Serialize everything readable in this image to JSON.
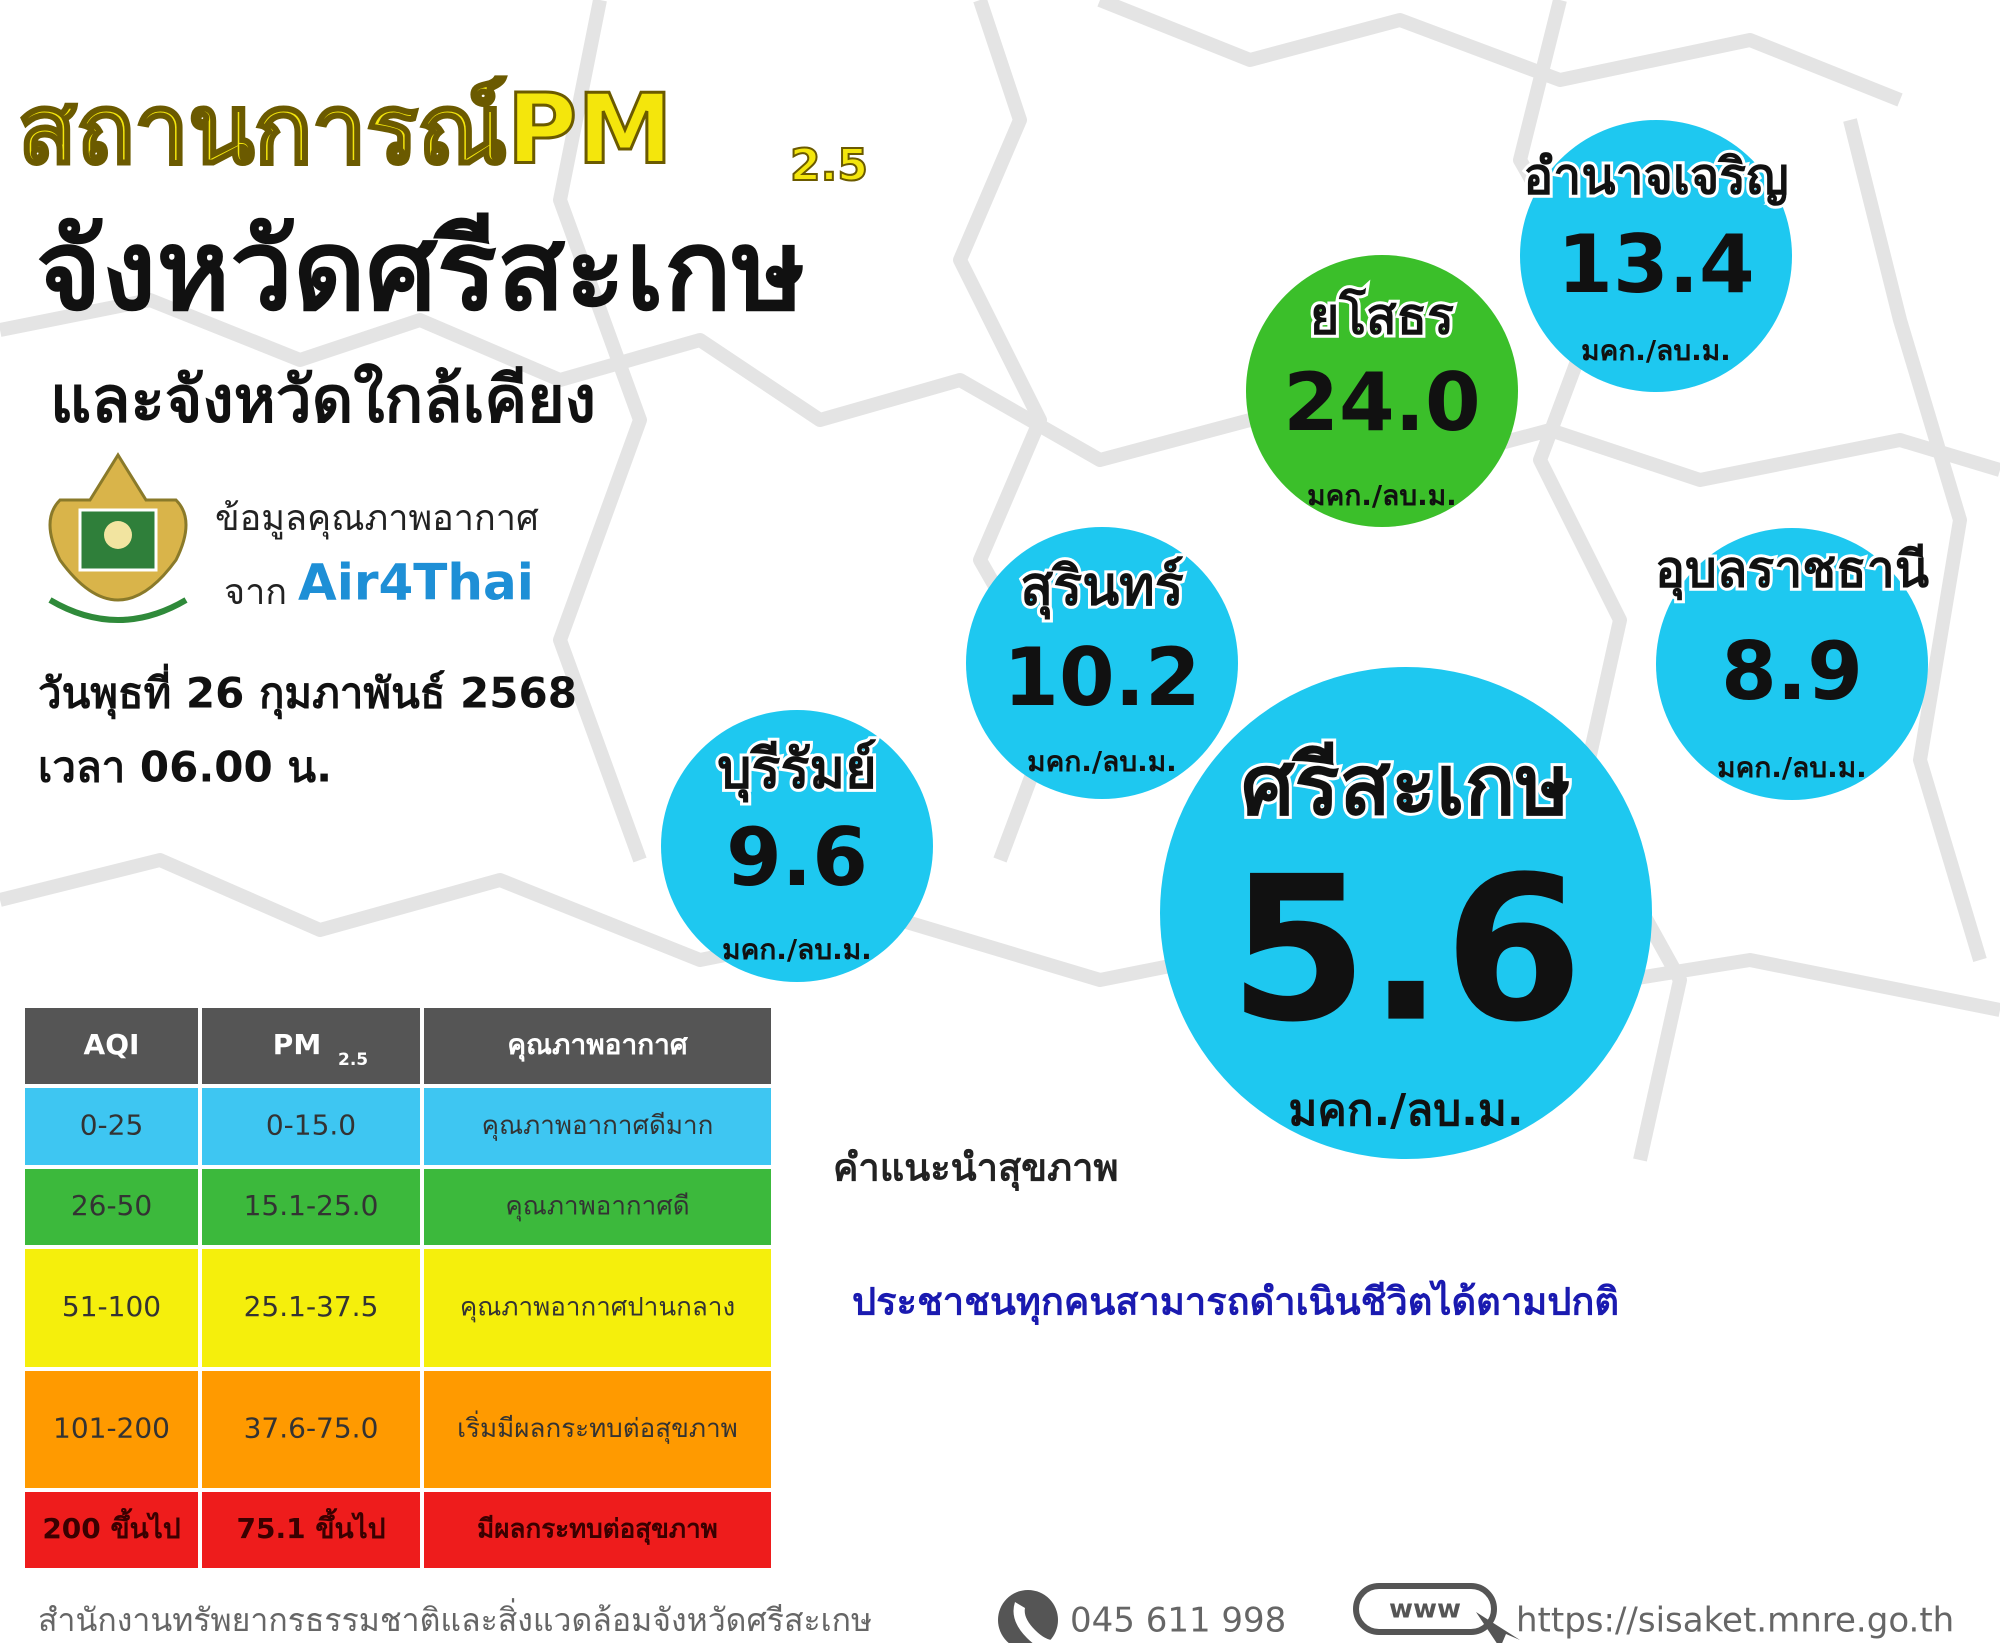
{
  "header": {
    "title": "สถานการณ์PM",
    "title_sub": "2.5",
    "province": "จังหวัดศรีสะเกษ",
    "subtitle": "และจังหวัดใกล้เคียง"
  },
  "source": {
    "label": "ข้อมูลคุณภาพอากาศ",
    "from": "จาก",
    "logo": "Air4Thai"
  },
  "date": "วันพุธที่ 26 กุมภาพันธ์ 2568",
  "time": "เวลา 06.00 น.",
  "stations": [
    {
      "name": "อำนาจเจริญ",
      "value": "13.4",
      "unit": "มคก./ลบ.ม.",
      "color": "#1ec8f0"
    },
    {
      "name": "ยโสธร",
      "value": "24.0",
      "unit": "มคก./ลบ.ม.",
      "color": "#3bbf2a"
    },
    {
      "name": "สุรินทร์",
      "value": "10.2",
      "unit": "มคก./ลบ.ม.",
      "color": "#1ec8f0"
    },
    {
      "name": "อุบลราชธานี",
      "value": "8.9",
      "unit": "มคก./ลบ.ม.",
      "color": "#1ec8f0"
    },
    {
      "name": "บุรีรัมย์",
      "value": "9.6",
      "unit": "มคก./ลบ.ม.",
      "color": "#1ec8f0"
    },
    {
      "name": "ศรีสะเกษ",
      "value": "5.6",
      "unit": "มคก./ลบ.ม.",
      "color": "#1ec8f0"
    }
  ],
  "table": {
    "header": [
      "AQI",
      "PM",
      "คุณภาพอากาศ"
    ],
    "pm_sub": "2.5",
    "rows": [
      {
        "cells": [
          "0-25",
          "0-15.0",
          "คุณภาพอากาศดีมาก"
        ],
        "color": "#3ec6f2"
      },
      {
        "cells": [
          "26-50",
          "15.1-25.0",
          "คุณภาพอากาศดี"
        ],
        "color": "#3cb93c"
      },
      {
        "cells": [
          "51-100",
          "25.1-37.5",
          "คุณภาพอากาศปานกลาง"
        ],
        "color": "#f5ef0c"
      },
      {
        "cells": [
          "101-200",
          "37.6-75.0",
          "เริ่มมีผลกระทบต่อสุขภาพ"
        ],
        "color": "#ff9a00"
      },
      {
        "cells": [
          "200 ขึ้นไป",
          "75.1 ขึ้นไป",
          "มีผลกระทบต่อสุขภาพ"
        ],
        "color": "#ee1c1c"
      }
    ]
  },
  "advice": {
    "title": "คำแนะนำสุขภาพ",
    "text": "ประชาชนทุกคนสามารถดำเนินชีวิตได้ตามปกติ"
  },
  "footer": {
    "office": "สำนักงานทรัพยากรธรรมชาติและสิ่งแวดล้อมจังหวัดศรีสะเกษ",
    "phone": "045 611 998",
    "url": "https://sisaket.mnre.go.th"
  }
}
